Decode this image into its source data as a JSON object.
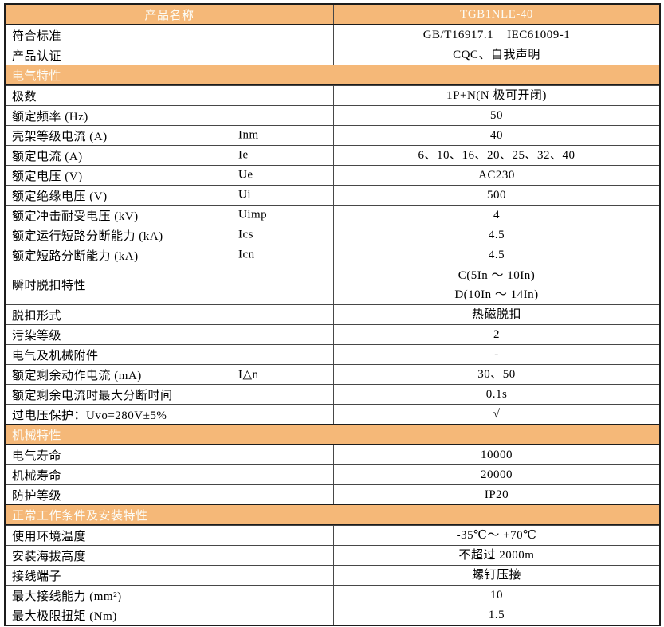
{
  "table": {
    "colors": {
      "accent_orange": "#F5B878",
      "header_text": "#FCFCF6",
      "grid_line": "#474747",
      "outer_border": "#1c1c1c"
    },
    "rows": [
      {
        "type": "header",
        "label": "产品名称",
        "value": "TGB1NLE-40"
      },
      {
        "type": "data",
        "label": "符合标准",
        "value": "GB/T16917.1    IEC61009-1"
      },
      {
        "type": "data",
        "label": "产品认证",
        "value": "CQC、自我声明"
      },
      {
        "type": "section",
        "label": "电气特性"
      },
      {
        "type": "data",
        "label": "极数",
        "value": "1P+N(N 极可开闭)"
      },
      {
        "type": "data",
        "label": "额定频率 (Hz)",
        "value": "50"
      },
      {
        "type": "data",
        "label": "壳架等级电流 (A)",
        "symbol": "Inm",
        "value": "40"
      },
      {
        "type": "data",
        "label": "额定电流 (A)",
        "symbol": "Ie",
        "value": "6、10、16、20、25、32、40"
      },
      {
        "type": "data",
        "label": "额定电压 (V)",
        "symbol": "Ue",
        "value": "AC230"
      },
      {
        "type": "data",
        "label": "额定绝缘电压 (V)",
        "symbol": "Ui",
        "value": "500"
      },
      {
        "type": "data",
        "label": "额定冲击耐受电压 (kV)",
        "symbol": "Uimp",
        "value": "4"
      },
      {
        "type": "data",
        "label": "额定运行短路分断能力 (kA)",
        "symbol": "Ics",
        "value": "4.5"
      },
      {
        "type": "data",
        "label": "额定短路分断能力 (kA)",
        "symbol": "Icn",
        "value": "4.5"
      },
      {
        "type": "data",
        "label": "瞬时脱扣特性",
        "tall": true,
        "values": [
          "C(5In ～ 10In)",
          "D(10In ～ 14In)"
        ]
      },
      {
        "type": "data",
        "label": "脱扣形式",
        "value": "热磁脱扣"
      },
      {
        "type": "data",
        "label": "污染等级",
        "value": "2"
      },
      {
        "type": "data",
        "label": "电气及机械附件",
        "value": "-"
      },
      {
        "type": "data",
        "label": "额定剩余动作电流 (mA)",
        "symbol": "I△n",
        "value": "30、50"
      },
      {
        "type": "data",
        "label": "额定剩余电流时最大分断时间",
        "value": "0.1s"
      },
      {
        "type": "data",
        "label": "过电压保护：Uvo=280V±5%",
        "value": "√"
      },
      {
        "type": "section",
        "label": "机械特性"
      },
      {
        "type": "data",
        "label": "电气寿命",
        "value": "10000"
      },
      {
        "type": "data",
        "label": "机械寿命",
        "value": "20000"
      },
      {
        "type": "data",
        "label": "防护等级",
        "value": "IP20"
      },
      {
        "type": "section",
        "label": "正常工作条件及安装特性"
      },
      {
        "type": "data",
        "label": "使用环境温度",
        "value": "-35℃～ +70℃"
      },
      {
        "type": "data",
        "label": "安装海拔高度",
        "value": "不超过 2000m"
      },
      {
        "type": "data",
        "label": "接线端子",
        "value": "螺钉压接"
      },
      {
        "type": "data",
        "label": "最大接线能力 (mm²)",
        "value": "10"
      },
      {
        "type": "data",
        "label": "最大极限扭矩 (Nm)",
        "value": "1.5"
      }
    ]
  }
}
